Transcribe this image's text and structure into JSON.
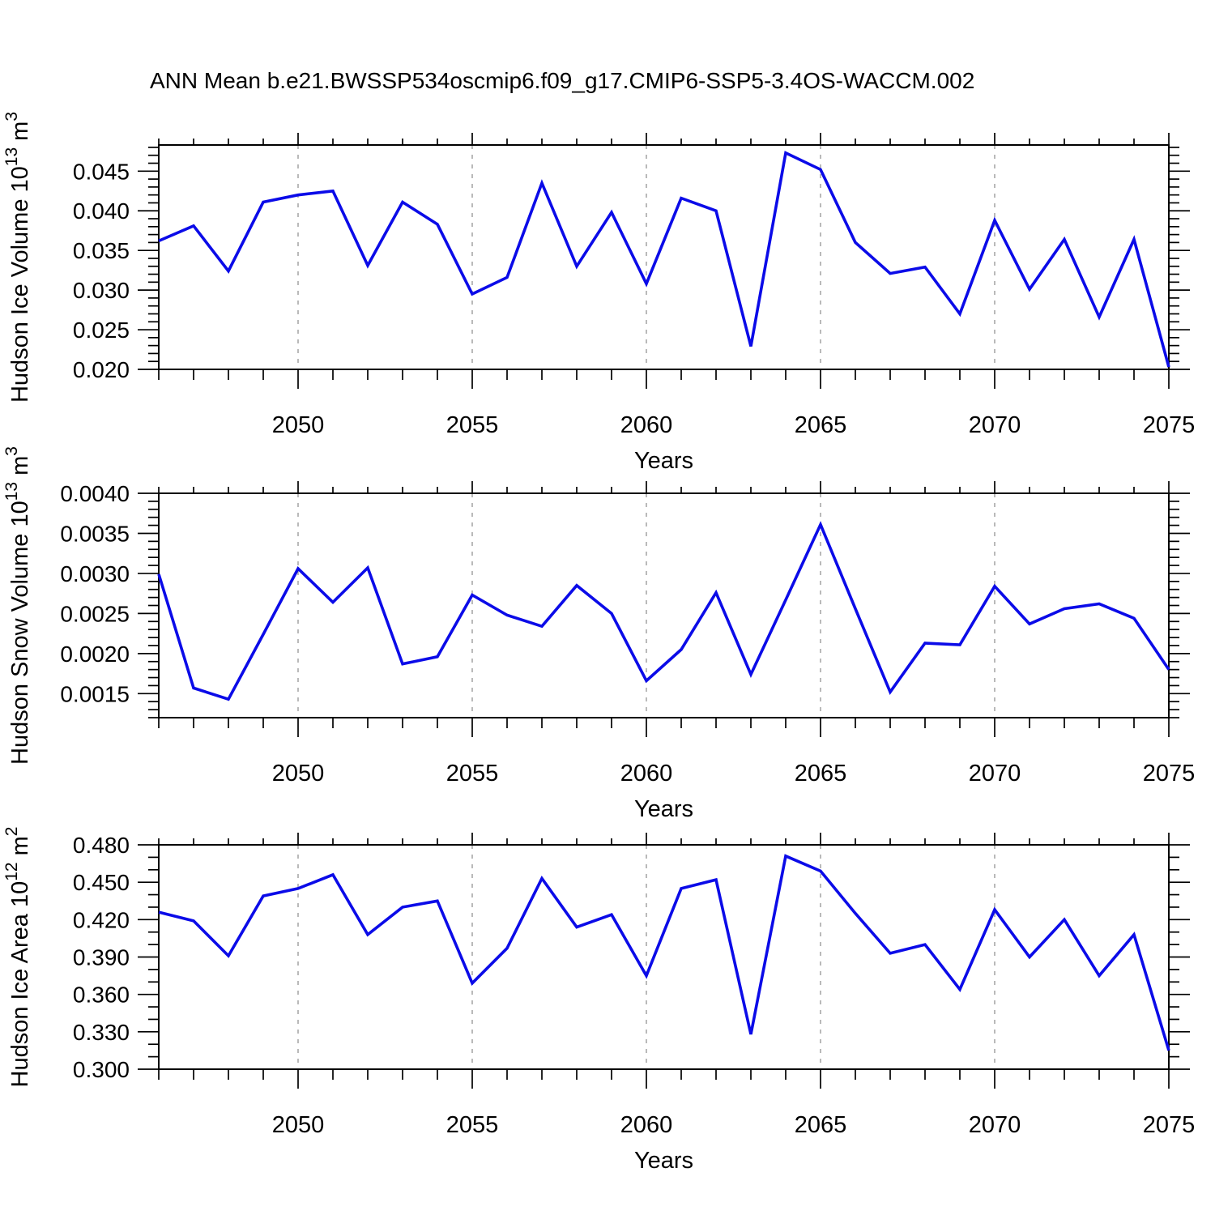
{
  "title": "ANN Mean b.e21.BWSSP534oscmip6.f09_g17.CMIP6-SSP5-3.4OS-WACCM.002",
  "style": {
    "line_color": "#0B0BE8",
    "grid_color": "#A8A8A8",
    "frame_color": "#000000",
    "text_color": "#000000",
    "background": "#FFFFFF"
  },
  "chart_data": [
    {
      "type": "line",
      "name": "hudson-ice-volume",
      "ylabel": "Hudson Ice Volume 10^13 m^3",
      "ylabel_parts": {
        "base": "Hudson Ice Volume 10",
        "exp": "13",
        "unit": " m",
        "unit_exp": "3"
      },
      "xlabel": "Years",
      "x": [
        2046,
        2047,
        2048,
        2049,
        2050,
        2051,
        2052,
        2053,
        2054,
        2055,
        2056,
        2057,
        2058,
        2059,
        2060,
        2061,
        2062,
        2063,
        2064,
        2065,
        2066,
        2067,
        2068,
        2069,
        2070,
        2071,
        2072,
        2073,
        2074,
        2075
      ],
      "y": [
        0.0362,
        0.0381,
        0.0324,
        0.0411,
        0.042,
        0.0425,
        0.0331,
        0.0411,
        0.0383,
        0.0295,
        0.0316,
        0.0435,
        0.033,
        0.0398,
        0.0308,
        0.0416,
        0.04,
        0.0229,
        0.0473,
        0.0452,
        0.036,
        0.0321,
        0.0329,
        0.027,
        0.0388,
        0.0301,
        0.0364,
        0.0266,
        0.0364,
        0.0203
      ],
      "xlim": [
        2046,
        2075
      ],
      "ylim": [
        0.02,
        0.0483
      ],
      "ytick_major": 0.005,
      "ytick_minor": 0.001,
      "ytick_labels": [
        "0.020",
        "0.025",
        "0.030",
        "0.035",
        "0.040",
        "0.045"
      ],
      "xtick_labels": [
        "2050",
        "2055",
        "2060",
        "2065",
        "2070",
        "2075"
      ],
      "gridlines_x": [
        2050,
        2055,
        2060,
        2065,
        2070
      ],
      "grid": true,
      "legend": null
    },
    {
      "type": "line",
      "name": "hudson-snow-volume",
      "ylabel": "Hudson Snow Volume 10^13 m^3",
      "ylabel_parts": {
        "base": "Hudson Snow Volume 10",
        "exp": "13",
        "unit": " m",
        "unit_exp": "3"
      },
      "xlabel": "Years",
      "x": [
        2046,
        2047,
        2048,
        2049,
        2050,
        2051,
        2052,
        2053,
        2054,
        2055,
        2056,
        2057,
        2058,
        2059,
        2060,
        2061,
        2062,
        2063,
        2064,
        2065,
        2066,
        2067,
        2068,
        2069,
        2070,
        2071,
        2072,
        2073,
        2074,
        2075
      ],
      "y": [
        0.00299,
        0.00157,
        0.00143,
        0.00224,
        0.00306,
        0.00264,
        0.00307,
        0.00187,
        0.00196,
        0.00273,
        0.00248,
        0.00234,
        0.00285,
        0.0025,
        0.00166,
        0.00205,
        0.00276,
        0.00174,
        0.00267,
        0.00361,
        0.00256,
        0.00152,
        0.00213,
        0.00211,
        0.00284,
        0.00237,
        0.00256,
        0.00262,
        0.00244,
        0.0018
      ],
      "xlim": [
        2046,
        2075
      ],
      "ylim": [
        0.0012,
        0.004
      ],
      "ytick_major": 0.0005,
      "ytick_minor": 0.0001,
      "ytick_labels": [
        "0.0015",
        "0.0020",
        "0.0025",
        "0.0030",
        "0.0035",
        "0.0040"
      ],
      "xtick_labels": [
        "2050",
        "2055",
        "2060",
        "2065",
        "2070",
        "2075"
      ],
      "gridlines_x": [
        2050,
        2055,
        2060,
        2065,
        2070
      ],
      "grid": true,
      "legend": null
    },
    {
      "type": "line",
      "name": "hudson-ice-area",
      "ylabel": "Hudson Ice Area 10^12 m^2",
      "ylabel_parts": {
        "base": "Hudson Ice Area 10",
        "exp": "12",
        "unit": " m",
        "unit_exp": "2"
      },
      "xlabel": "Years",
      "x": [
        2046,
        2047,
        2048,
        2049,
        2050,
        2051,
        2052,
        2053,
        2054,
        2055,
        2056,
        2057,
        2058,
        2059,
        2060,
        2061,
        2062,
        2063,
        2064,
        2065,
        2066,
        2067,
        2068,
        2069,
        2070,
        2071,
        2072,
        2073,
        2074,
        2075
      ],
      "y": [
        0.426,
        0.419,
        0.391,
        0.439,
        0.445,
        0.456,
        0.408,
        0.43,
        0.435,
        0.369,
        0.397,
        0.453,
        0.414,
        0.424,
        0.375,
        0.445,
        0.452,
        0.328,
        0.471,
        0.459,
        0.425,
        0.393,
        0.4,
        0.364,
        0.428,
        0.39,
        0.42,
        0.375,
        0.408,
        0.315
      ],
      "xlim": [
        2046,
        2075
      ],
      "ylim": [
        0.3,
        0.48
      ],
      "ytick_major": 0.03,
      "ytick_minor": 0.01,
      "ytick_labels": [
        "0.300",
        "0.330",
        "0.360",
        "0.390",
        "0.420",
        "0.450",
        "0.480"
      ],
      "xtick_labels": [
        "2050",
        "2055",
        "2060",
        "2065",
        "2070",
        "2075"
      ],
      "gridlines_x": [
        2050,
        2055,
        2060,
        2065,
        2070
      ],
      "grid": true,
      "legend": null
    }
  ]
}
